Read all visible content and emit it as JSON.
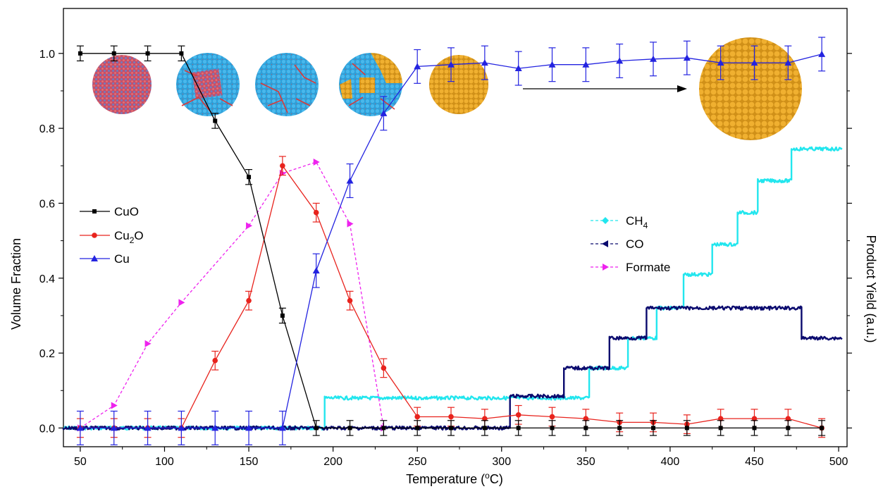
{
  "chart_data": {
    "type": "line",
    "xlabel": "Temperature (°C)",
    "xlabel_parts": [
      "Temperature (",
      "o",
      "C)"
    ],
    "ylabel_left": "Volume Fraction",
    "ylabel_right": "Product Yield (a.u.)",
    "xlim": [
      40,
      505
    ],
    "ylim": [
      -0.05,
      1.12
    ],
    "x_ticks": [
      "50",
      "100",
      "150",
      "200",
      "250",
      "300",
      "350",
      "400",
      "450",
      "500"
    ],
    "y_ticks": [
      "0.0",
      "0.2",
      "0.4",
      "0.6",
      "0.8",
      "1.0"
    ],
    "grid": false,
    "legend_left": "upper-left",
    "legend_right": "center-right",
    "legend_labels": {
      "cuo": "CuO",
      "cu2o": [
        "Cu",
        "2",
        "O"
      ],
      "cu": "Cu",
      "ch4": [
        "CH",
        "4"
      ],
      "co": "CO",
      "formate": "Formate"
    },
    "colors": {
      "cuo": "#000000",
      "cu2o": "#e8231d",
      "cu": "#2323e0",
      "ch4": "#22e6ee",
      "co": "#0a0a6e",
      "formate": "#ee22ee"
    },
    "x_phase": [
      50,
      70,
      90,
      110,
      130,
      150,
      170,
      190,
      210,
      230,
      250,
      270,
      290,
      310,
      330,
      350,
      370,
      390,
      410,
      430,
      450,
      470,
      490
    ],
    "series": [
      {
        "name": "CuO",
        "x": [
          50,
          70,
          90,
          110,
          130,
          150,
          170,
          190,
          210,
          230,
          250,
          270,
          290,
          310,
          330,
          350,
          370,
          390,
          410,
          430,
          450,
          470,
          490
        ],
        "values": [
          1.0,
          1.0,
          1.0,
          1.0,
          0.82,
          0.67,
          0.3,
          0.0,
          0.0,
          0.0,
          0.0,
          0.0,
          0.0,
          0.0,
          0.0,
          0.0,
          0.0,
          0.0,
          0.0,
          0.0,
          0.0,
          0.0,
          0.0
        ],
        "error": 0.02
      },
      {
        "name": "Cu2O",
        "x": [
          50,
          70,
          90,
          110,
          130,
          150,
          170,
          190,
          210,
          230,
          250,
          270,
          290,
          310,
          330,
          350,
          370,
          390,
          410,
          430,
          450,
          470,
          490
        ],
        "values": [
          0.0,
          0.0,
          0.0,
          0.0,
          0.18,
          0.34,
          0.7,
          0.575,
          0.34,
          0.16,
          0.03,
          0.03,
          0.025,
          0.035,
          0.03,
          0.025,
          0.015,
          0.015,
          0.01,
          0.025,
          0.025,
          0.025,
          0.0
        ],
        "error": 0.025
      },
      {
        "name": "Cu",
        "x": [
          50,
          70,
          90,
          110,
          130,
          150,
          170,
          190,
          210,
          230,
          250,
          270,
          290,
          310,
          330,
          350,
          370,
          390,
          410,
          430,
          450,
          470,
          490
        ],
        "values": [
          0.0,
          0.0,
          0.0,
          0.0,
          0.0,
          0.0,
          0.0,
          0.42,
          0.66,
          0.84,
          0.965,
          0.97,
          0.975,
          0.96,
          0.97,
          0.97,
          0.98,
          0.985,
          0.988,
          0.975,
          0.975,
          0.975,
          0.998
        ],
        "error": 0.045
      },
      {
        "name": "Formate",
        "x": [
          50,
          70,
          90,
          110,
          150,
          170,
          190,
          210,
          230
        ],
        "values": [
          0.0,
          0.06,
          0.225,
          0.335,
          0.54,
          0.68,
          0.71,
          0.545,
          0.0
        ]
      },
      {
        "name": "CH4",
        "steps": [
          [
            40,
            0.0
          ],
          [
            195,
            0.0
          ],
          [
            195,
            0.08
          ],
          [
            352,
            0.08
          ],
          [
            352,
            0.16
          ],
          [
            375,
            0.16
          ],
          [
            375,
            0.24
          ],
          [
            392,
            0.24
          ],
          [
            392,
            0.32
          ],
          [
            408,
            0.32
          ],
          [
            408,
            0.41
          ],
          [
            425,
            0.41
          ],
          [
            425,
            0.49
          ],
          [
            440,
            0.49
          ],
          [
            440,
            0.575
          ],
          [
            452,
            0.575
          ],
          [
            452,
            0.66
          ],
          [
            472,
            0.66
          ],
          [
            472,
            0.745
          ],
          [
            502,
            0.745
          ]
        ]
      },
      {
        "name": "CO",
        "steps": [
          [
            40,
            0.0
          ],
          [
            305,
            0.0
          ],
          [
            305,
            0.085
          ],
          [
            337,
            0.085
          ],
          [
            337,
            0.16
          ],
          [
            364,
            0.16
          ],
          [
            364,
            0.24
          ],
          [
            386,
            0.24
          ],
          [
            386,
            0.32
          ],
          [
            478,
            0.32
          ],
          [
            478,
            0.24
          ],
          [
            502,
            0.24
          ]
        ]
      }
    ]
  }
}
